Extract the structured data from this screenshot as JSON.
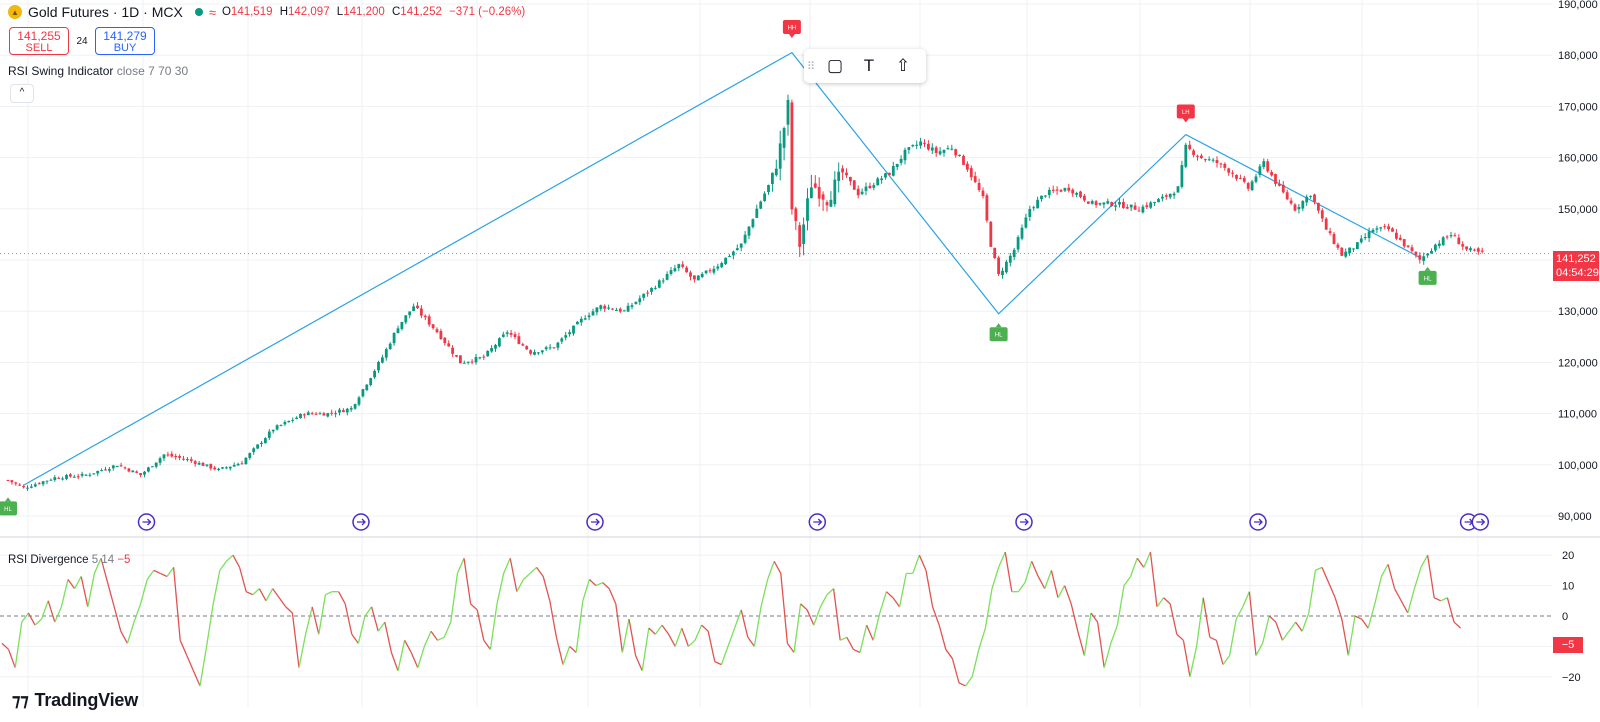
{
  "header": {
    "symbol": "Gold Futures · 1D · MCX",
    "ohlc": {
      "o_label": "O",
      "o": "141,519",
      "h_label": "H",
      "h": "142,097",
      "l_label": "L",
      "l": "141,200",
      "c_label": "C",
      "c": "141,252",
      "change": "−371 (−0.26%)"
    }
  },
  "trade": {
    "sell_price": "141,255",
    "sell_label": "SELL",
    "spread": "24",
    "buy_price": "141,279",
    "buy_label": "BUY"
  },
  "indicator1": {
    "name": "RSI Swing Indicator",
    "params": "close 7 70 30"
  },
  "indicator2": {
    "name": "RSI Divergence",
    "params": "5 14",
    "value": "−5"
  },
  "price_tag": {
    "price": "141,252",
    "countdown": "04:54:29"
  },
  "rsi_tag": "−5",
  "brand": "TradingView",
  "icons": [
    "collapse-chevron-icon",
    "rectangle-tool-icon",
    "text-tool-icon",
    "arrow-up-tool-icon",
    "drag-handle-icon",
    "event-marker-icon"
  ],
  "colors": {
    "up": "#089981",
    "down": "#f23645",
    "swing_line": "#2aa1e6",
    "rsi_up": "#7be05a",
    "rsi_down": "#e2534f",
    "event_marker": "#4b2cc7"
  },
  "chart_data": [
    {
      "type": "candlestick",
      "title": "Gold Futures · 1D · MCX",
      "y_axis_ticks": [
        "90,000",
        "100,000",
        "110,000",
        "120,000",
        "130,000",
        "140,000",
        "150,000",
        "160,000",
        "170,000",
        "180,000",
        "190,000"
      ],
      "ylim": [
        87000,
        190000
      ],
      "last_price": 141252,
      "grid": true,
      "anchors": [
        [
          0,
          97000
        ],
        [
          4,
          95500
        ],
        [
          12,
          97500
        ],
        [
          20,
          98000
        ],
        [
          28,
          100000
        ],
        [
          34,
          98000
        ],
        [
          40,
          102000
        ],
        [
          46,
          101000
        ],
        [
          54,
          99000
        ],
        [
          60,
          100500
        ],
        [
          68,
          107000
        ],
        [
          76,
          110000
        ],
        [
          82,
          110000
        ],
        [
          88,
          111000
        ],
        [
          96,
          121000
        ],
        [
          100,
          127000
        ],
        [
          104,
          131000
        ],
        [
          110,
          126000
        ],
        [
          116,
          120000
        ],
        [
          122,
          121000
        ],
        [
          128,
          126000
        ],
        [
          134,
          122000
        ],
        [
          140,
          123000
        ],
        [
          148,
          129000
        ],
        [
          152,
          131000
        ],
        [
          158,
          130000
        ],
        [
          166,
          135000
        ],
        [
          172,
          139000
        ],
        [
          176,
          136000
        ],
        [
          182,
          139000
        ],
        [
          188,
          143000
        ],
        [
          192,
          150000
        ],
        [
          196,
          156000
        ],
        [
          198,
          162000
        ],
        [
          200,
          170000
        ],
        [
          201,
          150000
        ],
        [
          203,
          143000
        ],
        [
          206,
          155000
        ],
        [
          210,
          152000
        ],
        [
          214,
          157000
        ],
        [
          218,
          153000
        ],
        [
          222,
          155000
        ],
        [
          226,
          157000
        ],
        [
          230,
          161000
        ],
        [
          234,
          163000
        ],
        [
          238,
          161000
        ],
        [
          242,
          162000
        ],
        [
          246,
          158000
        ],
        [
          250,
          152000
        ],
        [
          252,
          143000
        ],
        [
          254,
          137000
        ],
        [
          258,
          142000
        ],
        [
          262,
          150000
        ],
        [
          266,
          153000
        ],
        [
          272,
          154000
        ],
        [
          278,
          151000
        ],
        [
          284,
          151000
        ],
        [
          290,
          150000
        ],
        [
          296,
          152000
        ],
        [
          300,
          154000
        ],
        [
          302,
          162000
        ],
        [
          306,
          160000
        ],
        [
          310,
          159000
        ],
        [
          314,
          157000
        ],
        [
          318,
          154000
        ],
        [
          322,
          159000
        ],
        [
          326,
          154000
        ],
        [
          330,
          150000
        ],
        [
          334,
          153000
        ],
        [
          338,
          146000
        ],
        [
          342,
          141000
        ],
        [
          346,
          143000
        ],
        [
          350,
          146000
        ],
        [
          354,
          146000
        ],
        [
          358,
          143000
        ],
        [
          362,
          140000
        ],
        [
          366,
          143000
        ],
        [
          370,
          145000
        ],
        [
          374,
          142000
        ],
        [
          378,
          141252
        ]
      ],
      "swing_line": [
        [
          4,
          96000
        ],
        [
          201,
          180500
        ],
        [
          254,
          129500
        ],
        [
          302,
          164500
        ],
        [
          362,
          140500
        ]
      ],
      "swing_labels": [
        {
          "text": "HL",
          "bar": 0,
          "price": 91500,
          "kind": "low"
        },
        {
          "text": "HH",
          "bar": 201,
          "price": 185500,
          "kind": "high"
        },
        {
          "text": "HL",
          "bar": 254,
          "price": 125500,
          "kind": "low"
        },
        {
          "text": "LH",
          "bar": 302,
          "price": 169000,
          "kind": "high"
        },
        {
          "text": "HL",
          "bar": 364,
          "price": 136500,
          "kind": "low"
        }
      ],
      "event_marker_bars": [
        35,
        90,
        150,
        207,
        260,
        320,
        374,
        377
      ]
    },
    {
      "type": "line",
      "title": "RSI Divergence 5 14 −5",
      "y_axis_ticks": [
        "−20",
        "−10",
        "0",
        "10",
        "20"
      ],
      "ylim": [
        -26,
        26
      ],
      "last_value": -5,
      "grid": true,
      "points": [
        [
          0,
          -9
        ],
        [
          1,
          -11
        ],
        [
          2,
          -17
        ],
        [
          3,
          -2
        ],
        [
          4,
          1
        ],
        [
          5,
          -3
        ],
        [
          6,
          -1
        ],
        [
          7,
          5
        ],
        [
          8,
          -2
        ],
        [
          9,
          3
        ],
        [
          10,
          12
        ],
        [
          11,
          9
        ],
        [
          12,
          13
        ],
        [
          13,
          3
        ],
        [
          14,
          14
        ],
        [
          15,
          19
        ],
        [
          16,
          11
        ],
        [
          17,
          3
        ],
        [
          18,
          -5
        ],
        [
          19,
          -9
        ],
        [
          20,
          -2
        ],
        [
          21,
          4
        ],
        [
          22,
          12
        ],
        [
          23,
          15
        ],
        [
          24,
          14
        ],
        [
          25,
          13
        ],
        [
          26,
          16
        ],
        [
          27,
          -8
        ],
        [
          28,
          -13
        ],
        [
          29,
          -18
        ],
        [
          30,
          -23
        ],
        [
          31,
          -10
        ],
        [
          32,
          4
        ],
        [
          33,
          15
        ],
        [
          34,
          18
        ],
        [
          35,
          20
        ],
        [
          36,
          16
        ],
        [
          37,
          8
        ],
        [
          38,
          7
        ],
        [
          39,
          9
        ],
        [
          40,
          5
        ],
        [
          41,
          9
        ],
        [
          42,
          6
        ],
        [
          43,
          3
        ],
        [
          44,
          1
        ],
        [
          45,
          -17
        ],
        [
          46,
          -6
        ],
        [
          47,
          3
        ],
        [
          48,
          -6
        ],
        [
          49,
          7
        ],
        [
          50,
          8
        ],
        [
          51,
          8
        ],
        [
          52,
          4
        ],
        [
          53,
          -6
        ],
        [
          54,
          -9
        ],
        [
          55,
          0
        ],
        [
          56,
          3
        ],
        [
          57,
          -5
        ],
        [
          58,
          -2
        ],
        [
          59,
          -12
        ],
        [
          60,
          -18
        ],
        [
          61,
          -8
        ],
        [
          62,
          -12
        ],
        [
          63,
          -17
        ],
        [
          64,
          -10
        ],
        [
          65,
          -5
        ],
        [
          66,
          -8
        ],
        [
          67,
          -7
        ],
        [
          68,
          -2
        ],
        [
          69,
          14
        ],
        [
          70,
          19
        ],
        [
          71,
          4
        ],
        [
          72,
          2
        ],
        [
          73,
          -8
        ],
        [
          74,
          -11
        ],
        [
          75,
          4
        ],
        [
          76,
          14
        ],
        [
          77,
          19
        ],
        [
          78,
          8
        ],
        [
          79,
          12
        ],
        [
          80,
          14
        ],
        [
          81,
          16
        ],
        [
          82,
          13
        ],
        [
          83,
          5
        ],
        [
          84,
          -7
        ],
        [
          85,
          -16
        ],
        [
          86,
          -10
        ],
        [
          87,
          -12
        ],
        [
          88,
          5
        ],
        [
          89,
          12
        ],
        [
          90,
          10
        ],
        [
          91,
          11
        ],
        [
          92,
          9
        ],
        [
          93,
          4
        ],
        [
          94,
          -12
        ],
        [
          95,
          -1
        ],
        [
          96,
          -13
        ],
        [
          97,
          -18
        ],
        [
          98,
          -4
        ],
        [
          99,
          -6
        ],
        [
          100,
          -3
        ],
        [
          101,
          -6
        ],
        [
          102,
          -10
        ],
        [
          103,
          -4
        ],
        [
          104,
          -10
        ],
        [
          105,
          -8
        ],
        [
          106,
          -3
        ],
        [
          107,
          -5
        ],
        [
          108,
          -15
        ],
        [
          109,
          -16
        ],
        [
          110,
          -10
        ],
        [
          111,
          -4
        ],
        [
          112,
          2
        ],
        [
          113,
          -7
        ],
        [
          114,
          -10
        ],
        [
          115,
          3
        ],
        [
          116,
          12
        ],
        [
          117,
          18
        ],
        [
          118,
          14
        ],
        [
          119,
          -9
        ],
        [
          120,
          -12
        ],
        [
          121,
          4
        ],
        [
          122,
          2
        ],
        [
          123,
          -3
        ],
        [
          124,
          3
        ],
        [
          125,
          7
        ],
        [
          126,
          9
        ],
        [
          127,
          -8
        ],
        [
          128,
          -7
        ],
        [
          129,
          -11
        ],
        [
          130,
          -12
        ],
        [
          131,
          -3
        ],
        [
          132,
          -8
        ],
        [
          133,
          1
        ],
        [
          134,
          8
        ],
        [
          135,
          6
        ],
        [
          136,
          3
        ],
        [
          137,
          14
        ],
        [
          138,
          14
        ],
        [
          139,
          20
        ],
        [
          140,
          15
        ],
        [
          141,
          3
        ],
        [
          142,
          -3
        ],
        [
          143,
          -11
        ],
        [
          144,
          -14
        ],
        [
          145,
          -22
        ],
        [
          146,
          -23
        ],
        [
          147,
          -20
        ],
        [
          148,
          -11
        ],
        [
          149,
          -4
        ],
        [
          150,
          9
        ],
        [
          151,
          16
        ],
        [
          152,
          21
        ],
        [
          153,
          8
        ],
        [
          154,
          8
        ],
        [
          155,
          11
        ],
        [
          156,
          18
        ],
        [
          157,
          13
        ],
        [
          158,
          9
        ],
        [
          159,
          15
        ],
        [
          160,
          6
        ],
        [
          161,
          10
        ],
        [
          162,
          4
        ],
        [
          163,
          -5
        ],
        [
          164,
          -13
        ],
        [
          165,
          1
        ],
        [
          166,
          -2
        ],
        [
          167,
          -17
        ],
        [
          168,
          -9
        ],
        [
          169,
          -3
        ],
        [
          170,
          10
        ],
        [
          171,
          13
        ],
        [
          172,
          19
        ],
        [
          173,
          16
        ],
        [
          174,
          21
        ],
        [
          175,
          3
        ],
        [
          176,
          6
        ],
        [
          177,
          4
        ],
        [
          178,
          -6
        ],
        [
          179,
          -8
        ],
        [
          180,
          -20
        ],
        [
          181,
          -10
        ],
        [
          182,
          6
        ],
        [
          183,
          -7
        ],
        [
          184,
          -8
        ],
        [
          185,
          -16
        ],
        [
          186,
          -13
        ],
        [
          187,
          -1
        ],
        [
          188,
          3
        ],
        [
          189,
          8
        ],
        [
          190,
          -13
        ],
        [
          191,
          -9
        ],
        [
          192,
          0
        ],
        [
          193,
          -2
        ],
        [
          194,
          -8
        ],
        [
          195,
          -5
        ],
        [
          196,
          -2
        ],
        [
          197,
          -5
        ],
        [
          198,
          1
        ],
        [
          199,
          15
        ],
        [
          200,
          16
        ],
        [
          201,
          11
        ],
        [
          202,
          6
        ],
        [
          203,
          -1
        ],
        [
          204,
          -13
        ],
        [
          205,
          0
        ],
        [
          206,
          -1
        ],
        [
          207,
          -4
        ],
        [
          208,
          4
        ],
        [
          209,
          13
        ],
        [
          210,
          17
        ],
        [
          211,
          9
        ],
        [
          212,
          5
        ],
        [
          213,
          1
        ],
        [
          214,
          9
        ],
        [
          215,
          16
        ],
        [
          216,
          20
        ],
        [
          217,
          6
        ],
        [
          218,
          5
        ],
        [
          219,
          6
        ],
        [
          220,
          -2
        ],
        [
          221,
          -4
        ]
      ]
    }
  ]
}
